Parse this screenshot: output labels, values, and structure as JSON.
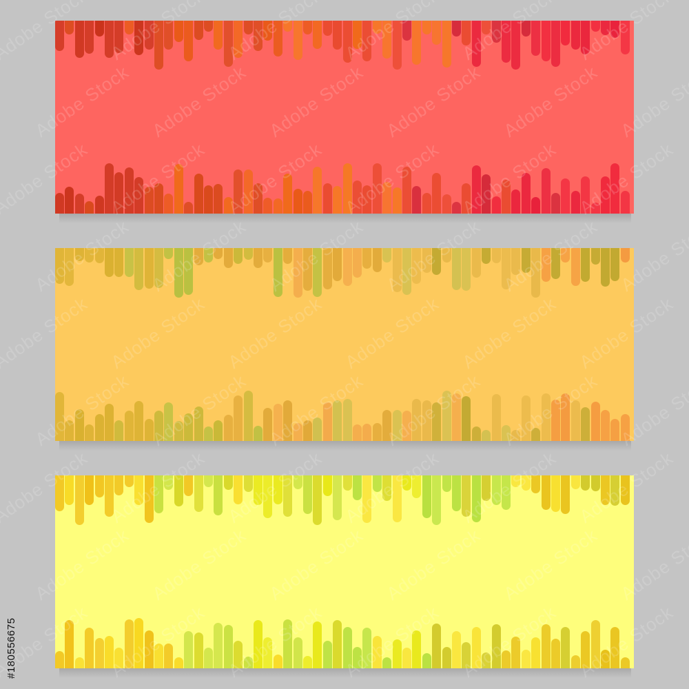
{
  "page": {
    "background": "#c4c4c4"
  },
  "watermark": {
    "text": "Adobe Stock"
  },
  "stock_id": "#180556675",
  "banners": [
    {
      "name": "red-banner",
      "background": "#fe6560",
      "palette": [
        "#c9331a",
        "#d94a1c",
        "#e85a16",
        "#f06a1a",
        "#f57a22",
        "#e84a2e",
        "#d42a3a",
        "#e8203a",
        "#f0283c"
      ]
    },
    {
      "name": "orange-banner",
      "background": "#fdca5d",
      "palette": [
        "#d9b030",
        "#c8b838",
        "#b8c040",
        "#e0a838",
        "#f2a84a",
        "#d0c050",
        "#e8b84a",
        "#c0a830",
        "#f49a40"
      ]
    },
    {
      "name": "yellow-banner",
      "background": "#fefe7c",
      "palette": [
        "#f0c018",
        "#f8d820",
        "#c8e040",
        "#d8d828",
        "#e8e818",
        "#b8e040",
        "#f8e030",
        "#d0c828",
        "#e8c018"
      ]
    }
  ]
}
